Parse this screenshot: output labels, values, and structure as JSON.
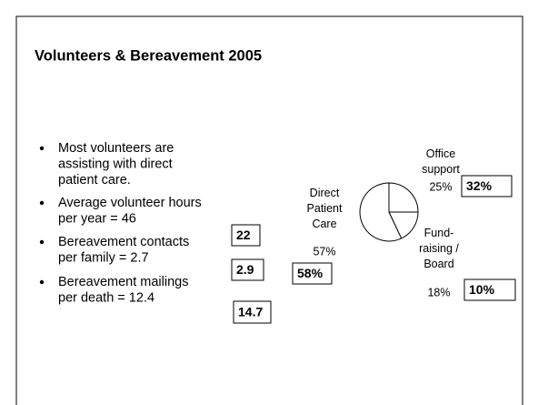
{
  "title": "Volunteers & Bereavement 2005",
  "bullets": [
    [
      "Most volunteers are",
      "assisting with direct",
      "patient care."
    ],
    [
      "Average volunteer hours",
      "per year = 46"
    ],
    [
      "Bereavement contacts",
      "per family = 2.7"
    ],
    [
      "Bereavement mailings",
      "per death = 12.4"
    ]
  ],
  "bullet_boxes": [
    "22",
    "2.9",
    "14.7"
  ],
  "chart_data": {
    "type": "pie",
    "categories": [
      "Office support",
      "Fund-raising / Board",
      "Direct Patient Care"
    ],
    "values": [
      25,
      18,
      57
    ],
    "value_labels": [
      "25%",
      "18%",
      "57%"
    ],
    "annotations": [
      "32%",
      "10%",
      "58%"
    ]
  }
}
